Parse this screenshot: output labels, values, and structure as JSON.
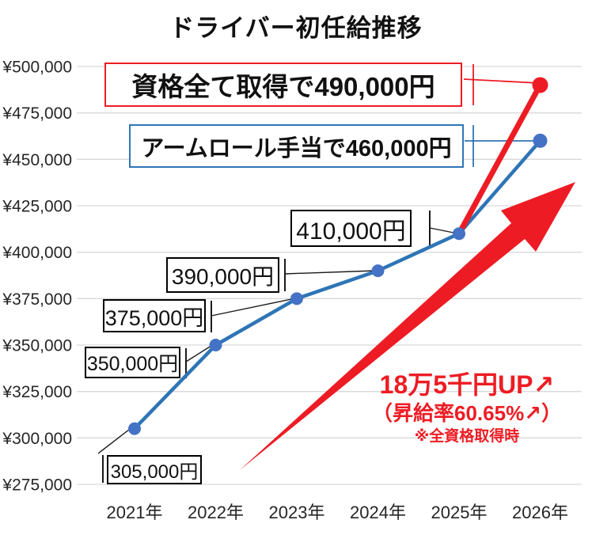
{
  "title": "ドライバー初任給推移",
  "chart_data": {
    "type": "line",
    "title": "ドライバー初任給推移",
    "categories": [
      "2021年",
      "2022年",
      "2023年",
      "2024年",
      "2025年",
      "2026年"
    ],
    "series": [
      {
        "name": "アームロール手当",
        "color": "#2e75b6",
        "point_color": "#4472c4",
        "values": [
          305000,
          350000,
          375000,
          390000,
          410000,
          460000
        ]
      },
      {
        "name": "資格全て取得",
        "color": "#ed1c24",
        "point_color": "#ed1c24",
        "values": [
          null,
          null,
          null,
          null,
          410000,
          490000
        ]
      }
    ],
    "ylim": [
      275000,
      500000
    ],
    "y_tick_step": 25000,
    "y_tick_prefix": "¥",
    "y_tick_labels": [
      "¥275,000",
      "¥300,000",
      "¥325,000",
      "¥350,000",
      "¥375,000",
      "¥400,000",
      "¥425,000",
      "¥450,000",
      "¥475,000",
      "¥500,000"
    ],
    "grid": true,
    "legend": "none"
  },
  "annotations": {
    "callout_490": "資格全て取得で490,000円",
    "callout_460": "アームロール手当で460,000円",
    "point_labels": [
      "305,000円",
      "350,000円",
      "375,000円",
      "390,000円",
      "410,000円"
    ],
    "up_note_line1": "18万5千円UP↗",
    "up_note_line2": "（昇給率60.65%↗）",
    "up_note_line3": "※全資格取得時"
  },
  "colors": {
    "accent_red": "#ed1c24",
    "line_blue": "#2e75b6",
    "point_blue": "#4472c4",
    "grid": "#d9d9d9",
    "text": "#262626",
    "leader_black": "#1a1a1a"
  }
}
